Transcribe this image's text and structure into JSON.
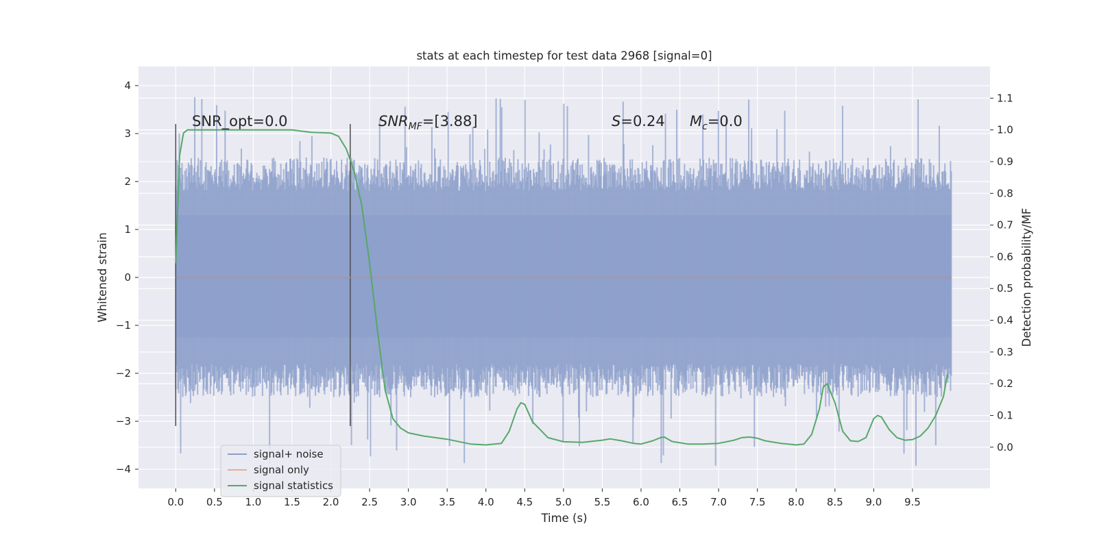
{
  "chart_data": {
    "type": "line",
    "title": "stats at each timestep for test data 2968 [signal=0]",
    "xlabel": "Time (s)",
    "ylabel": "Whitened strain",
    "ylabel_right": "Detection probability/MF",
    "xlim": [
      -0.48,
      10.5
    ],
    "ylim": [
      -4.4,
      4.4
    ],
    "ylim_right": [
      -0.13,
      1.2
    ],
    "x_ticks": [
      0.0,
      0.5,
      1.0,
      1.5,
      2.0,
      2.5,
      3.0,
      3.5,
      4.0,
      4.5,
      5.0,
      5.5,
      6.0,
      6.5,
      7.0,
      7.5,
      8.0,
      8.5,
      9.0,
      9.5
    ],
    "x_tick_labels": [
      "0.0",
      "0.5",
      "1.0",
      "1.5",
      "2.0",
      "2.5",
      "3.0",
      "3.5",
      "4.0",
      "4.5",
      "5.0",
      "5.5",
      "6.0",
      "6.5",
      "7.0",
      "7.5",
      "8.0",
      "8.5",
      "9.0",
      "9.5"
    ],
    "y_ticks": [
      4,
      3,
      2,
      1,
      0,
      -1,
      -2,
      -3,
      -4
    ],
    "y_tick_labels": [
      "4",
      "3",
      "2",
      "1",
      "0",
      "−1",
      "−2",
      "−3",
      "−4"
    ],
    "y2_ticks": [
      1.1,
      1.0,
      0.9,
      0.8,
      0.7,
      0.6,
      0.5,
      0.4,
      0.3,
      0.2,
      0.1,
      0.0
    ],
    "y2_tick_labels": [
      "1.1",
      "1.0",
      "0.9",
      "0.8",
      "0.7",
      "0.6",
      "0.5",
      "0.4",
      "0.3",
      "0.2",
      "0.1",
      "0.0"
    ],
    "grid": true,
    "legend_position": "lower-left",
    "series": [
      {
        "name": "signal+ noise",
        "color": "#8da0cb",
        "kind": "noise-band",
        "x_range": [
          0.0,
          10.0
        ],
        "dense_band": [
          -1.25,
          1.3
        ],
        "typical_range": [
          -2.5,
          2.5
        ],
        "extreme_range": [
          -3.97,
          4.05
        ]
      },
      {
        "name": "signal only",
        "color": "#dd8452",
        "x": [
          0.0,
          10.0
        ],
        "y": [
          0.0,
          0.0
        ]
      },
      {
        "name": "signal statistics",
        "color": "#55a868",
        "axis": "right",
        "x": [
          0.0,
          0.05,
          0.1,
          0.15,
          0.25,
          0.5,
          1.0,
          1.5,
          1.75,
          2.0,
          2.1,
          2.2,
          2.3,
          2.4,
          2.5,
          2.6,
          2.7,
          2.8,
          2.9,
          3.0,
          3.2,
          3.5,
          3.8,
          4.0,
          4.2,
          4.3,
          4.4,
          4.45,
          4.5,
          4.6,
          4.8,
          5.0,
          5.25,
          5.5,
          5.6,
          5.75,
          5.9,
          6.0,
          6.15,
          6.25,
          6.3,
          6.4,
          6.6,
          6.8,
          7.0,
          7.2,
          7.3,
          7.4,
          7.5,
          7.6,
          7.8,
          8.0,
          8.1,
          8.2,
          8.3,
          8.35,
          8.4,
          8.5,
          8.6,
          8.7,
          8.8,
          8.9,
          9.0,
          9.05,
          9.1,
          9.2,
          9.3,
          9.4,
          9.5,
          9.6,
          9.7,
          9.8,
          9.9,
          9.95
        ],
        "y": [
          0.58,
          0.92,
          0.99,
          1.0,
          1.0,
          1.0,
          1.0,
          1.0,
          0.992,
          0.99,
          0.98,
          0.94,
          0.87,
          0.76,
          0.58,
          0.37,
          0.18,
          0.09,
          0.06,
          0.045,
          0.035,
          0.025,
          0.01,
          0.007,
          0.012,
          0.05,
          0.12,
          0.14,
          0.135,
          0.08,
          0.03,
          0.017,
          0.015,
          0.022,
          0.026,
          0.02,
          0.012,
          0.01,
          0.02,
          0.03,
          0.032,
          0.018,
          0.01,
          0.01,
          0.012,
          0.022,
          0.03,
          0.032,
          0.028,
          0.02,
          0.012,
          0.007,
          0.01,
          0.04,
          0.12,
          0.19,
          0.2,
          0.14,
          0.05,
          0.02,
          0.018,
          0.03,
          0.09,
          0.1,
          0.095,
          0.055,
          0.03,
          0.022,
          0.024,
          0.035,
          0.06,
          0.1,
          0.16,
          0.23
        ]
      }
    ],
    "markers": [
      {
        "x": 0.0,
        "y_range": [
          -3.1,
          3.2
        ],
        "color": "#4d4d4d"
      },
      {
        "x": 2.25,
        "y_range": [
          -3.1,
          3.2
        ],
        "color": "#4d4d4d"
      }
    ],
    "annotations": [
      {
        "text": "SNR_opt=0.0",
        "x": 0.2,
        "y": 3.2
      },
      {
        "text": "SNR_MF=[3.88]",
        "x": 2.6,
        "y": 3.2
      },
      {
        "text": "S=0.24",
        "x": 5.6,
        "y": 3.2
      },
      {
        "text": "M_c=0.0",
        "x": 6.6,
        "y": 3.2
      }
    ]
  }
}
